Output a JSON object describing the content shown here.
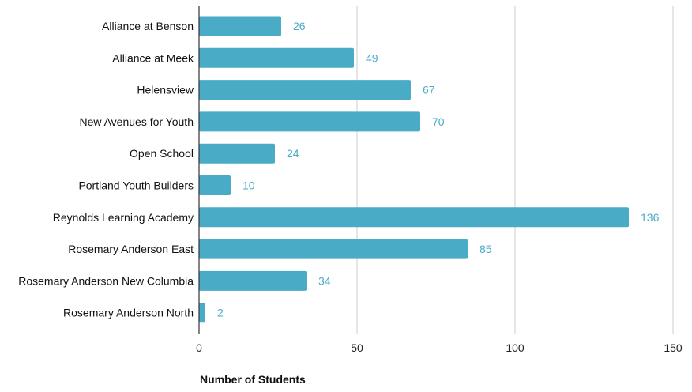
{
  "chart_data": {
    "type": "bar",
    "orientation": "horizontal",
    "categories": [
      "Alliance at Benson",
      "Alliance at Meek",
      "Helensview",
      "New Avenues for Youth",
      "Open School",
      "Portland Youth Builders",
      "Reynolds Learning Academy",
      "Rosemary Anderson East",
      "Rosemary Anderson New Columbia",
      "Rosemary Anderson North"
    ],
    "values": [
      26,
      49,
      67,
      70,
      24,
      10,
      136,
      85,
      34,
      2
    ],
    "xlabel": "Number of Students",
    "xlim": [
      0,
      150
    ],
    "xticks": [
      0,
      50,
      100,
      150
    ],
    "grid": true,
    "bar_color": "#4aabc6",
    "value_label_color": "#4aabc6"
  }
}
